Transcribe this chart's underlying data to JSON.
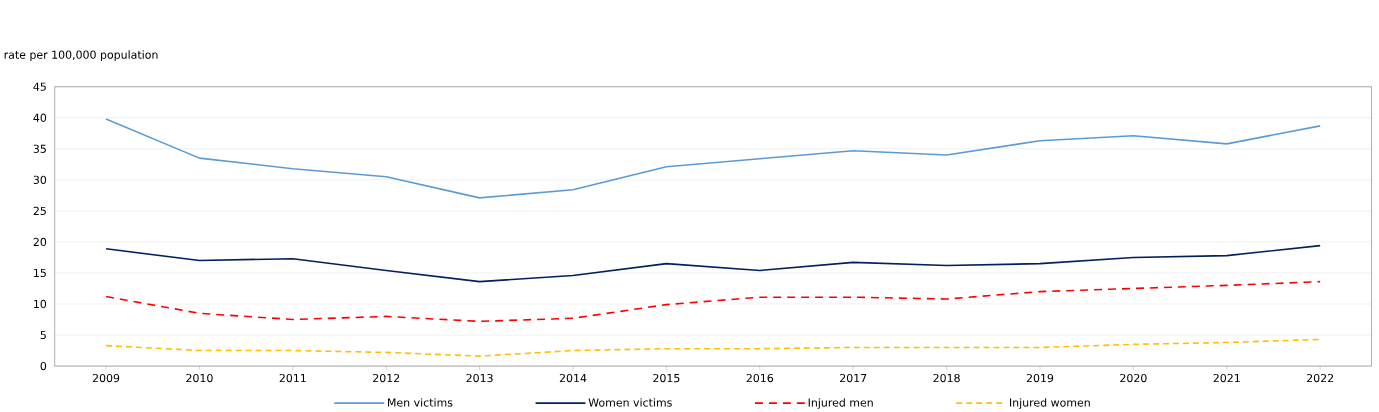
{
  "chart_data": {
    "type": "line",
    "ylabel": "rate per 100,000 population",
    "categories": [
      "2009",
      "2010",
      "2011",
      "2012",
      "2013",
      "2014",
      "2015",
      "2016",
      "2017",
      "2018",
      "2019",
      "2020",
      "2021",
      "2022"
    ],
    "series": [
      {
        "name": "Men victims",
        "color": "#5b9bd5",
        "line_style": "solid",
        "values": [
          39.8,
          33.5,
          31.8,
          30.5,
          27.1,
          28.4,
          32.1,
          33.4,
          34.7,
          34.0,
          36.3,
          37.1,
          35.8,
          38.7
        ]
      },
      {
        "name": "Women victims",
        "color": "#002060",
        "line_style": "solid",
        "values": [
          18.9,
          17.0,
          17.3,
          15.4,
          13.6,
          14.6,
          16.5,
          15.4,
          16.7,
          16.2,
          16.5,
          17.5,
          17.8,
          19.4
        ]
      },
      {
        "name": "Injured men",
        "color": "#ff0000",
        "line_style": "dashed",
        "values": [
          11.2,
          8.5,
          7.5,
          8.0,
          7.2,
          7.7,
          9.9,
          11.1,
          11.1,
          10.8,
          12.0,
          12.5,
          13.0,
          13.6
        ]
      },
      {
        "name": "Injured women",
        "color": "#ffc000",
        "line_style": "dashed",
        "values": [
          3.3,
          2.5,
          2.5,
          2.2,
          1.6,
          2.5,
          2.8,
          2.8,
          3.0,
          3.0,
          3.0,
          3.5,
          3.8,
          4.3
        ]
      }
    ],
    "ylim": [
      0,
      45
    ],
    "yticks": [
      0,
      5,
      10,
      15,
      20,
      25,
      30,
      35,
      40,
      45
    ],
    "grid": "y",
    "legend": "bottom",
    "marker": "none"
  }
}
